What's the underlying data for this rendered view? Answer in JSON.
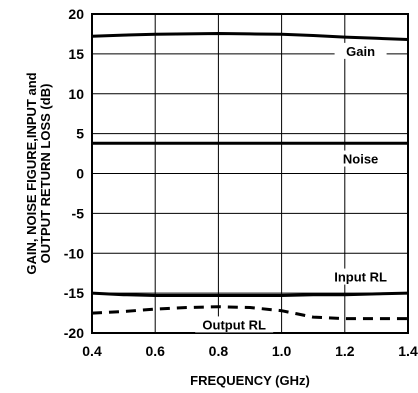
{
  "chart_data": {
    "type": "line",
    "title": "",
    "xlabel": "FREQUENCY (GHz)",
    "ylabel_lines": [
      "GAIN, NOISE FIGURE,INPUT and",
      "OUTPUT RETURN LOSS (dB)"
    ],
    "xlim": [
      0.4,
      1.4
    ],
    "ylim": [
      -20,
      20
    ],
    "xticks": [
      "0.4",
      "0.6",
      "0.8",
      "1.0",
      "1.2",
      "1.4"
    ],
    "yticks": [
      "20",
      "15",
      "10",
      "5",
      "0",
      "-5",
      "-10",
      "-15",
      "-20"
    ],
    "grid": true,
    "series": [
      {
        "name": "Gain",
        "style": "solid",
        "x": [
          0.4,
          0.5,
          0.6,
          0.7,
          0.8,
          0.9,
          1.0,
          1.1,
          1.2,
          1.3,
          1.4
        ],
        "y": [
          17.2,
          17.35,
          17.45,
          17.5,
          17.55,
          17.5,
          17.45,
          17.3,
          17.1,
          16.95,
          16.8
        ]
      },
      {
        "name": "Noise",
        "style": "solid",
        "x": [
          0.4,
          0.6,
          0.8,
          1.0,
          1.2,
          1.4
        ],
        "y": [
          3.8,
          3.8,
          3.8,
          3.8,
          3.8,
          3.8
        ]
      },
      {
        "name": "Input RL",
        "style": "solid",
        "x": [
          0.4,
          0.5,
          0.6,
          0.7,
          0.8,
          0.9,
          1.0,
          1.1,
          1.2,
          1.3,
          1.4
        ],
        "y": [
          -15.0,
          -15.2,
          -15.3,
          -15.3,
          -15.3,
          -15.3,
          -15.3,
          -15.2,
          -15.2,
          -15.1,
          -15.0
        ]
      },
      {
        "name": "Output RL",
        "style": "dashed",
        "x": [
          0.4,
          0.5,
          0.6,
          0.7,
          0.8,
          0.9,
          1.0,
          1.05,
          1.1,
          1.2,
          1.3,
          1.4
        ],
        "y": [
          -17.5,
          -17.3,
          -17.0,
          -16.8,
          -16.7,
          -16.8,
          -17.2,
          -17.6,
          -18.0,
          -18.2,
          -18.2,
          -18.2
        ]
      }
    ]
  }
}
